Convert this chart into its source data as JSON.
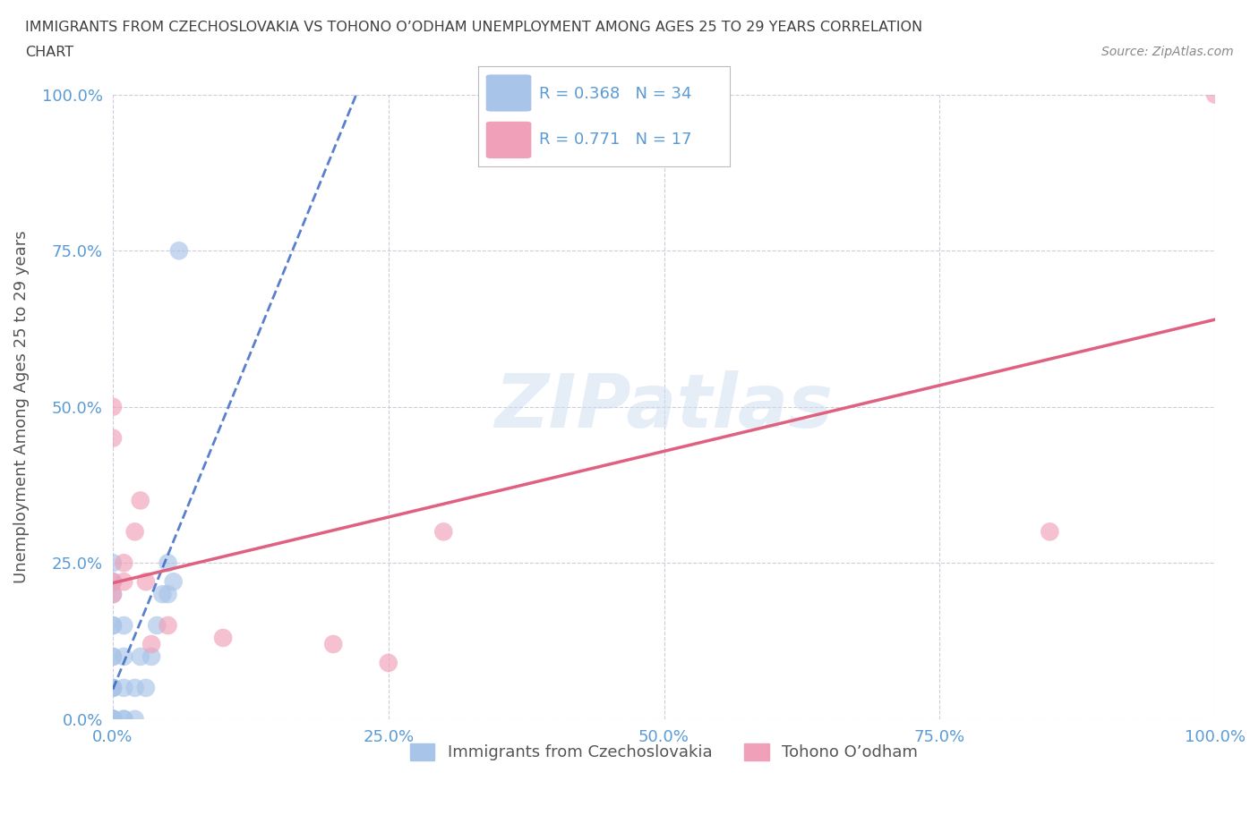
{
  "title_line1": "IMMIGRANTS FROM CZECHOSLOVAKIA VS TOHONO O’ODHAM UNEMPLOYMENT AMONG AGES 25 TO 29 YEARS CORRELATION",
  "title_line2": "CHART",
  "source": "Source: ZipAtlas.com",
  "ylabel": "Unemployment Among Ages 25 to 29 years",
  "R_blue": 0.368,
  "N_blue": 34,
  "R_pink": 0.771,
  "N_pink": 17,
  "blue_x": [
    0.0,
    0.0,
    0.0,
    0.0,
    0.0,
    0.0,
    0.0,
    0.0,
    0.0,
    0.0,
    0.0,
    0.0,
    0.0,
    0.0,
    0.0,
    0.0,
    0.0,
    0.0,
    0.01,
    0.01,
    0.01,
    0.01,
    0.01,
    0.02,
    0.02,
    0.025,
    0.03,
    0.035,
    0.04,
    0.045,
    0.05,
    0.05,
    0.055,
    0.06
  ],
  "blue_y": [
    0.0,
    0.0,
    0.0,
    0.0,
    0.0,
    0.0,
    0.0,
    0.0,
    0.05,
    0.05,
    0.05,
    0.1,
    0.1,
    0.15,
    0.15,
    0.2,
    0.22,
    0.25,
    0.0,
    0.0,
    0.05,
    0.1,
    0.15,
    0.0,
    0.05,
    0.1,
    0.05,
    0.1,
    0.15,
    0.2,
    0.2,
    0.25,
    0.22,
    0.75
  ],
  "pink_x": [
    0.0,
    0.0,
    0.0,
    0.0,
    0.01,
    0.01,
    0.02,
    0.025,
    0.03,
    0.035,
    0.05,
    0.1,
    0.2,
    0.25,
    0.3,
    0.85,
    1.0
  ],
  "pink_y": [
    0.5,
    0.45,
    0.2,
    0.22,
    0.22,
    0.25,
    0.3,
    0.35,
    0.22,
    0.12,
    0.15,
    0.13,
    0.12,
    0.09,
    0.3,
    0.3,
    1.0
  ],
  "xmin": 0.0,
  "xmax": 1.0,
  "ymin": 0.0,
  "ymax": 1.0,
  "x_ticks": [
    0.0,
    0.25,
    0.5,
    0.75,
    1.0
  ],
  "x_tick_labels": [
    "0.0%",
    "25.0%",
    "50.0%",
    "75.0%",
    "100.0%"
  ],
  "y_ticks": [
    0.0,
    0.25,
    0.5,
    0.75,
    1.0
  ],
  "y_tick_labels": [
    "0.0%",
    "25.0%",
    "50.0%",
    "75.0%",
    "100.0%"
  ],
  "blue_dot_color": "#a8c4e8",
  "blue_line_color": "#3060c0",
  "pink_dot_color": "#f0a0b8",
  "pink_line_color": "#e06080",
  "watermark": "ZIPatlas",
  "legend_label_blue": "Immigrants from Czechoslovakia",
  "legend_label_pink": "Tohono O’odham",
  "bg_color": "#ffffff",
  "grid_color": "#ccccdd",
  "title_color": "#404040",
  "tick_label_color": "#5b9bd5"
}
